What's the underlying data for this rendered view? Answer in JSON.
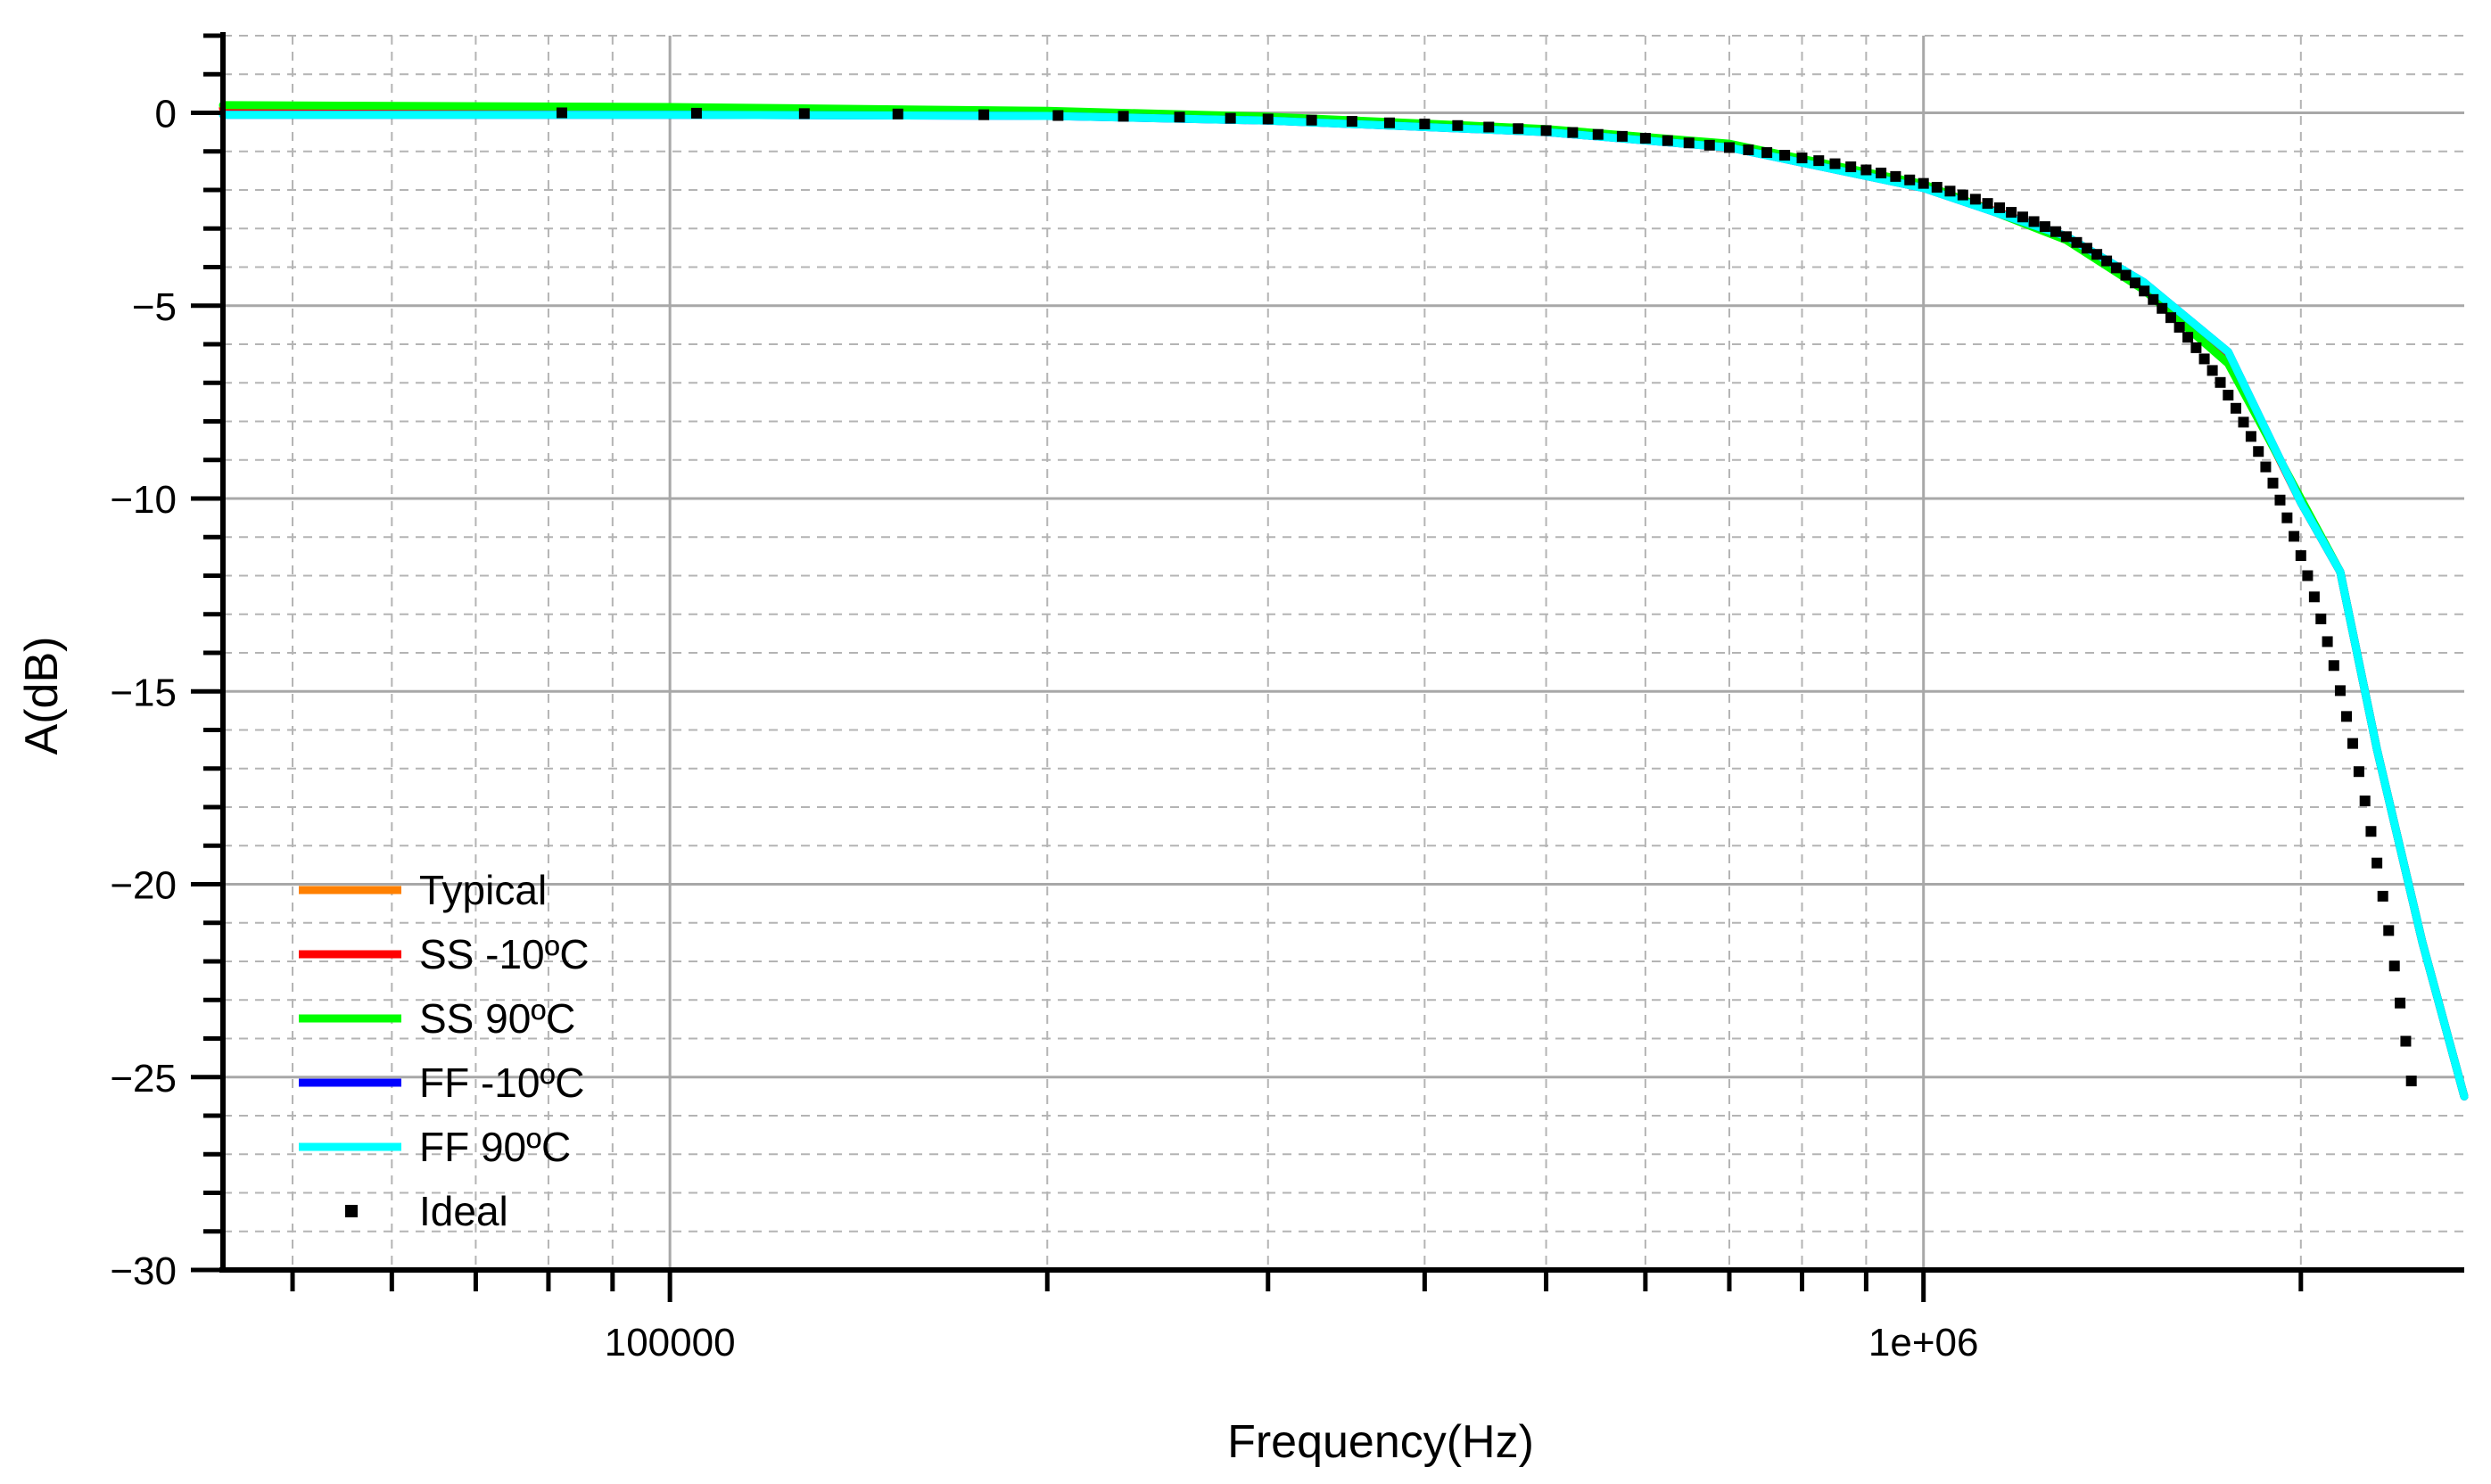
{
  "chart_data": {
    "type": "line",
    "title": "",
    "xlabel": "Frequency(Hz)",
    "ylabel": "A(dB)",
    "x_scale": "log",
    "xlim": [
      44000,
      2700000
    ],
    "ylim": [
      -30,
      2
    ],
    "x_tick_labels": [
      {
        "value": 100000,
        "label": "100000"
      },
      {
        "value": 1000000,
        "label": "1e+06"
      }
    ],
    "y_tick_labels": [
      {
        "value": 0,
        "label": "0"
      },
      {
        "value": -5,
        "label": "−5"
      },
      {
        "value": -10,
        "label": "−10"
      },
      {
        "value": -15,
        "label": "−15"
      },
      {
        "value": -20,
        "label": "−20"
      },
      {
        "value": -25,
        "label": "−25"
      },
      {
        "value": -30,
        "label": "−30"
      }
    ],
    "grid": true,
    "legend_position": "bottom-left",
    "series": [
      {
        "name": "Typical",
        "color": "#ff8000",
        "style": "line",
        "x": [
          44000,
          100000,
          200000,
          300000,
          500000,
          700000,
          1000000,
          1300000,
          1500000,
          1750000,
          2000000,
          2150000,
          2300000,
          2500000,
          2700000
        ],
        "y": [
          0.12,
          0.08,
          0.02,
          -0.15,
          -0.45,
          -0.85,
          -1.9,
          -3.2,
          -4.5,
          -6.3,
          -10.1,
          -11.9,
          -16.5,
          -21.5,
          -25.5
        ]
      },
      {
        "name": "SS -10ºC",
        "color": "#ff0000",
        "style": "line",
        "x": [
          44000,
          100000,
          200000,
          300000,
          500000,
          700000,
          1000000,
          1300000,
          1500000,
          1750000,
          2000000,
          2150000,
          2300000,
          2500000,
          2700000
        ],
        "y": [
          0.12,
          0.08,
          0.02,
          -0.15,
          -0.45,
          -0.85,
          -1.9,
          -3.2,
          -4.5,
          -6.3,
          -10.1,
          -11.9,
          -16.5,
          -21.5,
          -25.5
        ]
      },
      {
        "name": "SS 90ºC",
        "color": "#00ff00",
        "style": "line",
        "x": [
          44000,
          100000,
          200000,
          300000,
          500000,
          700000,
          1000000,
          1300000,
          1500000,
          1750000,
          2000000,
          2150000,
          2300000,
          2500000,
          2700000
        ],
        "y": [
          0.2,
          0.15,
          0.05,
          -0.1,
          -0.42,
          -0.8,
          -1.85,
          -3.3,
          -4.6,
          -6.5,
          -10.0,
          -11.9,
          -16.5,
          -21.5,
          -25.5
        ]
      },
      {
        "name": "FF -10ºC",
        "color": "#0000ff",
        "style": "line",
        "x": [
          44000,
          100000,
          200000,
          300000,
          500000,
          700000,
          1000000,
          1300000,
          1500000,
          1750000,
          2000000,
          2150000,
          2300000,
          2500000,
          2700000
        ],
        "y": [
          -0.05,
          -0.05,
          -0.08,
          -0.2,
          -0.5,
          -0.9,
          -1.95,
          -3.2,
          -4.4,
          -6.2,
          -10.1,
          -11.9,
          -16.5,
          -21.5,
          -25.5
        ]
      },
      {
        "name": "FF 90ºC",
        "color": "#00ffff",
        "style": "line",
        "x": [
          44000,
          100000,
          200000,
          300000,
          500000,
          700000,
          1000000,
          1300000,
          1500000,
          1750000,
          2000000,
          2150000,
          2300000,
          2500000,
          2700000
        ],
        "y": [
          -0.05,
          -0.05,
          -0.08,
          -0.2,
          -0.5,
          -0.9,
          -1.95,
          -3.2,
          -4.4,
          -6.2,
          -10.1,
          -11.9,
          -16.5,
          -21.5,
          -25.5
        ]
      },
      {
        "name": "Ideal",
        "color": "#000000",
        "style": "markers",
        "x": [
          82000,
          105000,
          128000,
          152000,
          178000,
          204000,
          230000,
          255000,
          280000,
          300000,
          325000,
          350000,
          375000,
          400000,
          425000,
          450000,
          475000,
          500000,
          525000,
          550000,
          575000,
          600000,
          625000,
          650000,
          675000,
          700000,
          725000,
          750000,
          775000,
          800000,
          825000,
          850000,
          875000,
          900000,
          925000,
          950000,
          975000,
          1000000,
          1025000,
          1050000,
          1075000,
          1100000,
          1125000,
          1150000,
          1175000,
          1200000,
          1225000,
          1250000,
          1275000,
          1300000,
          1325000,
          1350000,
          1375000,
          1400000,
          1425000,
          1450000,
          1475000,
          1500000,
          1525000,
          1550000,
          1575000,
          1600000,
          1625000,
          1650000,
          1675000,
          1700000,
          1725000,
          1750000,
          1775000,
          1800000,
          1825000,
          1850000,
          1875000,
          1900000,
          1925000,
          1950000,
          1975000,
          2000000,
          2025000,
          2050000,
          2075000,
          2100000,
          2125000,
          2150000,
          2175000,
          2200000,
          2225000,
          2250000,
          2275000,
          2300000,
          2325000,
          2350000,
          2375000,
          2400000,
          2425000,
          2450000
        ],
        "y": [
          0.0,
          -0.01,
          -0.02,
          -0.03,
          -0.05,
          -0.07,
          -0.09,
          -0.11,
          -0.14,
          -0.16,
          -0.19,
          -0.22,
          -0.26,
          -0.29,
          -0.33,
          -0.37,
          -0.41,
          -0.46,
          -0.51,
          -0.56,
          -0.61,
          -0.66,
          -0.72,
          -0.78,
          -0.84,
          -0.9,
          -0.96,
          -1.03,
          -1.1,
          -1.17,
          -1.24,
          -1.32,
          -1.4,
          -1.48,
          -1.56,
          -1.65,
          -1.74,
          -1.83,
          -1.93,
          -2.03,
          -2.13,
          -2.24,
          -2.35,
          -2.46,
          -2.58,
          -2.7,
          -2.82,
          -2.95,
          -3.08,
          -3.21,
          -3.36,
          -3.51,
          -3.67,
          -3.84,
          -4.02,
          -4.21,
          -4.41,
          -4.62,
          -4.84,
          -5.07,
          -5.31,
          -5.56,
          -5.82,
          -6.09,
          -6.38,
          -6.68,
          -6.99,
          -7.32,
          -7.66,
          -8.02,
          -8.39,
          -8.78,
          -9.18,
          -9.6,
          -10.04,
          -10.5,
          -10.98,
          -11.48,
          -12.0,
          -12.55,
          -13.12,
          -13.71,
          -14.33,
          -14.98,
          -15.65,
          -16.35,
          -17.08,
          -17.84,
          -18.63,
          -19.45,
          -20.31,
          -21.2,
          -22.12,
          -23.08,
          -24.07,
          -25.1
        ]
      }
    ]
  }
}
